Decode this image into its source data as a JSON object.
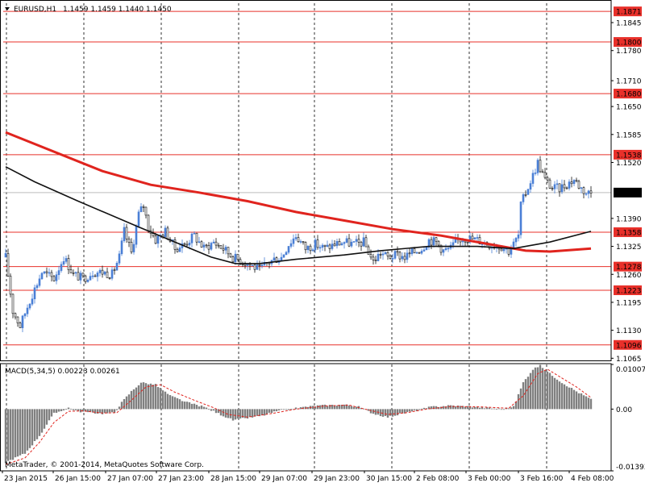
{
  "window": {
    "title": "EURUSD,H1",
    "ohlc": "1.1459 1.1459 1.1440 1.1450",
    "copyright": "MetaTrader, © 2001-2014, MetaQuotes Software Corp."
  },
  "colors": {
    "background": "#ffffff",
    "bull_candle": "#4a7fd6",
    "bear_candle": "#111111",
    "level_line": "#e8302a",
    "ma_slow": "#e0241e",
    "ma_fast": "#111111",
    "price_line": "#bdbdbd",
    "macd_hist": "#808080",
    "macd_signal": "#e0241e",
    "grid": "#000000",
    "tag_bg": "#e8302a",
    "tag_text": "#ffffff",
    "current_tag_bg": "#000000"
  },
  "chart_data": [
    {
      "type": "candlestick",
      "symbol": "EURUSD",
      "timeframe": "H1",
      "title": "EURUSD,H1",
      "ylim": [
        1.106,
        1.189
      ],
      "y_ticks": [
        "1.1845",
        "1.1780",
        "1.1710",
        "1.1650",
        "1.1585",
        "1.1520",
        "1.1390",
        "1.1325",
        "1.1260",
        "1.1195",
        "1.1130",
        "1.1065"
      ],
      "x_ticks": [
        "23 Jan 2015",
        "26 Jan 15:00",
        "27 Jan 07:00",
        "27 Jan 23:00",
        "28 Jan 15:00",
        "29 Jan 07:00",
        "29 Jan 23:00",
        "30 Jan 15:00",
        "2 Feb 08:00",
        "3 Feb 00:00",
        "3 Feb 16:00",
        "4 Feb 08:00"
      ],
      "grid": true,
      "horizontal_levels": [
        "1.1871",
        "1.1800",
        "1.1680",
        "1.1538",
        "1.1358",
        "1.1278",
        "1.1223",
        "1.1096"
      ],
      "current_price": "1.1450",
      "close_path": [
        [
          0,
          1.13
        ],
        [
          3,
          1.1175
        ],
        [
          6,
          1.114
        ],
        [
          10,
          1.12
        ],
        [
          15,
          1.1265
        ],
        [
          20,
          1.125
        ],
        [
          24,
          1.13
        ],
        [
          28,
          1.126
        ],
        [
          32,
          1.125
        ],
        [
          36,
          1.1265
        ],
        [
          40,
          1.1265
        ],
        [
          44,
          1.126
        ],
        [
          47,
          1.13
        ],
        [
          49,
          1.136
        ],
        [
          52,
          1.131
        ],
        [
          55,
          1.14
        ],
        [
          57,
          1.142
        ],
        [
          59,
          1.137
        ],
        [
          62,
          1.134
        ],
        [
          66,
          1.136
        ],
        [
          70,
          1.132
        ],
        [
          74,
          1.133
        ],
        [
          78,
          1.135
        ],
        [
          82,
          1.132
        ],
        [
          86,
          1.1335
        ],
        [
          90,
          1.132
        ],
        [
          94,
          1.13
        ],
        [
          98,
          1.129
        ],
        [
          102,
          1.128
        ],
        [
          105,
          1.127
        ],
        [
          108,
          1.1285
        ],
        [
          111,
          1.1295
        ],
        [
          114,
          1.13
        ],
        [
          117,
          1.133
        ],
        [
          120,
          1.135
        ],
        [
          124,
          1.132
        ],
        [
          128,
          1.133
        ],
        [
          132,
          1.132
        ],
        [
          136,
          1.133
        ],
        [
          140,
          1.1335
        ],
        [
          144,
          1.133
        ],
        [
          148,
          1.1335
        ],
        [
          152,
          1.129
        ],
        [
          155,
          1.131
        ],
        [
          158,
          1.13
        ],
        [
          162,
          1.1305
        ],
        [
          165,
          1.13
        ],
        [
          168,
          1.131
        ],
        [
          172,
          1.132
        ],
        [
          175,
          1.134
        ],
        [
          178,
          1.1335
        ],
        [
          181,
          1.1315
        ],
        [
          184,
          1.132
        ],
        [
          187,
          1.134
        ],
        [
          190,
          1.1345
        ],
        [
          195,
          1.134
        ],
        [
          200,
          1.133
        ],
        [
          205,
          1.1325
        ],
        [
          208,
          1.1315
        ],
        [
          210,
          1.133
        ],
        [
          212,
          1.135
        ],
        [
          213,
          1.142
        ],
        [
          215,
          1.145
        ],
        [
          218,
          1.149
        ],
        [
          220,
          1.152
        ],
        [
          223,
          1.148
        ],
        [
          226,
          1.146
        ],
        [
          229,
          1.146
        ],
        [
          232,
          1.147
        ],
        [
          235,
          1.148
        ],
        [
          238,
          1.146
        ],
        [
          240,
          1.145
        ],
        [
          242,
          1.145
        ]
      ],
      "bar_count": 243,
      "series": [
        {
          "indicator": "moving-average",
          "points": [
            [
              0,
              1.159
            ],
            [
              40,
              1.15
            ],
            [
              60,
              1.1468
            ],
            [
              80,
              1.145
            ],
            [
              100,
              1.143
            ],
            [
              120,
              1.1405
            ],
            [
              140,
              1.1385
            ],
            [
              160,
              1.1365
            ],
            [
              180,
              1.135
            ],
            [
              200,
              1.133
            ],
            [
              215,
              1.1315
            ],
            [
              225,
              1.1313
            ],
            [
              242,
              1.132
            ]
          ]
        },
        {
          "indicator": "moving-average",
          "points": [
            [
              0,
              1.151
            ],
            [
              12,
              1.1475
            ],
            [
              30,
              1.143
            ],
            [
              55,
              1.137
            ],
            [
              70,
              1.1335
            ],
            [
              85,
              1.13
            ],
            [
              95,
              1.1285
            ],
            [
              105,
              1.1285
            ],
            [
              120,
              1.1295
            ],
            [
              140,
              1.1305
            ],
            [
              155,
              1.1315
            ],
            [
              175,
              1.1325
            ],
            [
              195,
              1.1325
            ],
            [
              210,
              1.132
            ],
            [
              225,
              1.1335
            ],
            [
              242,
              1.136
            ]
          ]
        }
      ]
    },
    {
      "type": "bar",
      "title": "MACD(5,34,5) 0.00223 0.00261",
      "ylim": [
        -0.01393,
        0.01007
      ],
      "y_ticks": [
        "0.01007",
        "0.00",
        "-0.01393"
      ],
      "hist_path": [
        [
          0,
          -0.012
        ],
        [
          8,
          -0.01
        ],
        [
          14,
          -0.006
        ],
        [
          20,
          -0.001
        ],
        [
          26,
          0.0003
        ],
        [
          30,
          -0.0005
        ],
        [
          40,
          -0.001
        ],
        [
          45,
          -0.0008
        ],
        [
          48,
          0.0015
        ],
        [
          52,
          0.004
        ],
        [
          56,
          0.006
        ],
        [
          62,
          0.0055
        ],
        [
          68,
          0.003
        ],
        [
          75,
          0.0015
        ],
        [
          82,
          0.0005
        ],
        [
          88,
          -0.001
        ],
        [
          94,
          -0.0025
        ],
        [
          100,
          -0.002
        ],
        [
          106,
          -0.0015
        ],
        [
          112,
          -0.0005
        ],
        [
          118,
          0.0
        ],
        [
          124,
          0.0005
        ],
        [
          130,
          0.0008
        ],
        [
          140,
          0.001
        ],
        [
          146,
          0.0005
        ],
        [
          152,
          -0.001
        ],
        [
          158,
          -0.0018
        ],
        [
          164,
          -0.001
        ],
        [
          170,
          -0.0003
        ],
        [
          176,
          0.0005
        ],
        [
          184,
          0.0008
        ],
        [
          194,
          0.0005
        ],
        [
          205,
          0.0
        ],
        [
          210,
          0.0005
        ],
        [
          214,
          0.006
        ],
        [
          218,
          0.009
        ],
        [
          221,
          0.0098
        ],
        [
          225,
          0.008
        ],
        [
          230,
          0.006
        ],
        [
          236,
          0.004
        ],
        [
          242,
          0.0022
        ]
      ],
      "signal_path": [
        [
          0,
          -0.0125
        ],
        [
          8,
          -0.011
        ],
        [
          14,
          -0.0075
        ],
        [
          20,
          -0.003
        ],
        [
          26,
          -0.0005
        ],
        [
          32,
          -0.0004
        ],
        [
          40,
          -0.0009
        ],
        [
          46,
          -0.0008
        ],
        [
          52,
          0.002
        ],
        [
          58,
          0.005
        ],
        [
          64,
          0.0055
        ],
        [
          70,
          0.0038
        ],
        [
          78,
          0.002
        ],
        [
          86,
          0.0003
        ],
        [
          92,
          -0.0012
        ],
        [
          100,
          -0.0018
        ],
        [
          110,
          -0.001
        ],
        [
          120,
          0.0
        ],
        [
          132,
          0.0007
        ],
        [
          142,
          0.0009
        ],
        [
          150,
          -0.0002
        ],
        [
          158,
          -0.0012
        ],
        [
          166,
          -0.0008
        ],
        [
          174,
          0.0
        ],
        [
          184,
          0.0006
        ],
        [
          196,
          0.0005
        ],
        [
          208,
          0.0002
        ],
        [
          214,
          0.003
        ],
        [
          220,
          0.008
        ],
        [
          224,
          0.009
        ],
        [
          230,
          0.007
        ],
        [
          236,
          0.005
        ],
        [
          242,
          0.0026
        ]
      ]
    }
  ]
}
